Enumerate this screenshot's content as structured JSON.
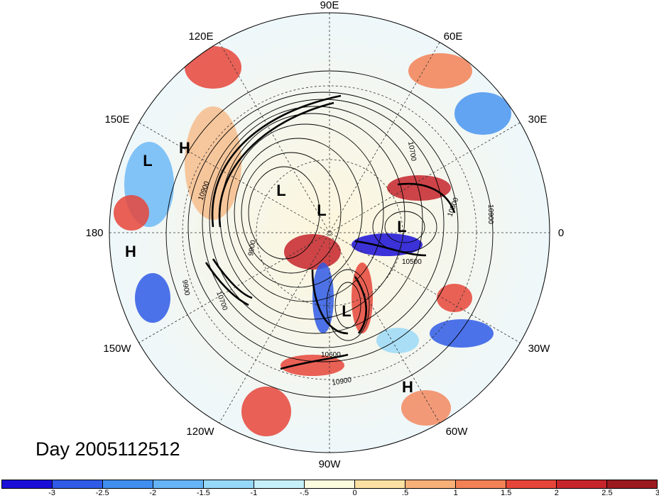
{
  "title": "Day 2005112512",
  "longitude_labels": {
    "e90": "90E",
    "e120": "120E",
    "e60": "60E",
    "e150": "150E",
    "e30": "30E",
    "w180": "180",
    "zero": "0",
    "w150": "150W",
    "w30": "30W",
    "w120": "120W",
    "w60": "60W",
    "w90": "90W"
  },
  "centers": {
    "l1": "L",
    "h1": "H",
    "l2": "L",
    "l3": "L",
    "h2": "H",
    "l4": "L",
    "l5": "L",
    "h3": "H"
  },
  "contour_labels": [
    "10900",
    "10700",
    "9900",
    "10500",
    "10900",
    "10500",
    "10600",
    "10900",
    "10700",
    "9900"
  ],
  "colorbar": {
    "colors": [
      "#1a0fd6",
      "#2f5be6",
      "#3f8ef0",
      "#65b5f6",
      "#96d8f8",
      "#c6f0fa",
      "#fbfbe0",
      "#fbe2a3",
      "#f7b078",
      "#f28156",
      "#e6453a",
      "#c6252c",
      "#9a1a20"
    ],
    "ticks": [
      "-3",
      "-2.5",
      "-2",
      "-1.5",
      "-1",
      "-.5",
      "0",
      ".5",
      "1",
      "1.5",
      "2",
      "2.5",
      "3"
    ]
  }
}
